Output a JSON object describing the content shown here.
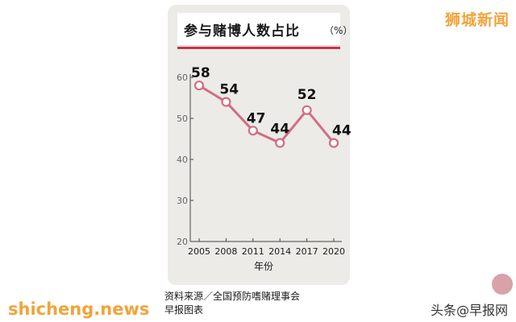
{
  "brand": "狮城新闻",
  "watermark": "shicheng.news",
  "corner_tag": "头条@早报网",
  "source_line1": "资料来源／全国预防嗜赌理事会",
  "source_line2": "早报图表",
  "colors": {
    "line": "#d16d83",
    "accent": "#c8324a",
    "brand": "#f2a33a"
  },
  "chart_data": {
    "type": "line",
    "title": "参与赌博人数占比",
    "unit": "（%）",
    "xlabel": "年份",
    "ylabel": "",
    "categories": [
      "2005",
      "2008",
      "2011",
      "2014",
      "2017",
      "2020"
    ],
    "series": [
      {
        "values": [
          58,
          54,
          47,
          44,
          52,
          44
        ]
      }
    ],
    "data_labels": [
      "58",
      "54",
      "47",
      "44",
      "52",
      "44"
    ],
    "ylim": [
      20,
      60
    ],
    "yticks": [
      20,
      30,
      40,
      50,
      60
    ],
    "ytick_labels": [
      "20",
      "30",
      "40",
      "50",
      "60"
    ],
    "grid": false,
    "legend": "none"
  }
}
